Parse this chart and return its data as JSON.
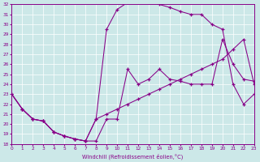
{
  "xlabel": "Windchill (Refroidissement éolien,°C)",
  "xlim": [
    0,
    23
  ],
  "ylim": [
    18,
    32
  ],
  "xticks": [
    0,
    1,
    2,
    3,
    4,
    5,
    6,
    7,
    8,
    9,
    10,
    11,
    12,
    13,
    14,
    15,
    16,
    17,
    18,
    19,
    20,
    21,
    22,
    23
  ],
  "yticks": [
    18,
    19,
    20,
    21,
    22,
    23,
    24,
    25,
    26,
    27,
    28,
    29,
    30,
    31,
    32
  ],
  "bg_color": "#cce8e8",
  "line_color": "#880088",
  "line1_x": [
    0,
    1,
    2,
    3,
    4,
    5,
    6,
    7,
    8,
    9,
    10,
    11,
    12,
    13,
    14,
    15,
    16,
    17,
    18,
    19,
    20,
    21,
    22,
    23
  ],
  "line1_y": [
    23.0,
    21.5,
    20.5,
    20.3,
    19.2,
    18.8,
    18.5,
    18.3,
    20.5,
    21.0,
    21.5,
    22.0,
    22.5,
    23.0,
    23.5,
    24.0,
    24.5,
    25.0,
    25.5,
    26.0,
    26.5,
    27.5,
    28.5,
    24.0
  ],
  "line2_x": [
    0,
    1,
    2,
    3,
    4,
    5,
    6,
    7,
    8,
    9,
    10,
    11,
    12,
    13,
    14,
    15,
    16,
    17,
    18,
    19,
    20,
    21,
    22,
    23
  ],
  "line2_y": [
    23.0,
    21.5,
    20.5,
    20.3,
    19.2,
    18.8,
    18.5,
    18.3,
    20.5,
    29.5,
    31.5,
    32.2,
    32.3,
    32.2,
    32.0,
    31.7,
    31.3,
    31.0,
    31.0,
    30.0,
    29.5,
    24.0,
    22.0,
    23.0
  ],
  "line3_x": [
    0,
    1,
    2,
    3,
    4,
    5,
    6,
    7,
    8,
    9,
    10,
    11,
    12,
    13,
    14,
    15,
    16,
    17,
    18,
    19,
    20,
    21,
    22,
    23
  ],
  "line3_y": [
    23.0,
    21.5,
    20.5,
    20.3,
    19.2,
    18.8,
    18.5,
    18.3,
    18.3,
    20.5,
    20.5,
    25.5,
    24.0,
    24.5,
    25.5,
    24.5,
    24.3,
    24.0,
    24.0,
    24.0,
    28.5,
    26.0,
    24.5,
    24.3
  ]
}
